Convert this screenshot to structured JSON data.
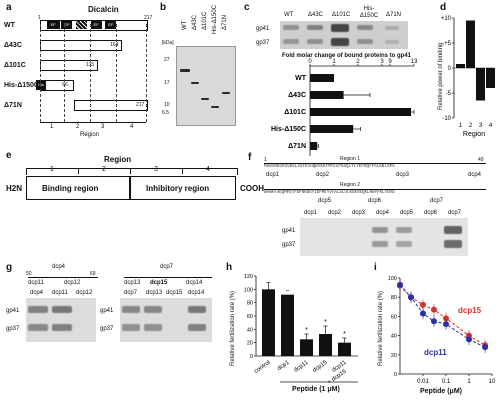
{
  "panels": {
    "a": {
      "label": "a",
      "title": "Dicalcin",
      "n_start": "1",
      "n_end": "217",
      "rows": [
        "WT",
        "Δ43C",
        "Δ101C",
        "His-Δ150C",
        "Δ71N"
      ],
      "row_ends": [
        "",
        "164",
        "115",
        "66",
        "217"
      ],
      "his_tag": "His",
      "region_label": "Region",
      "regions": [
        "1",
        "2",
        "3",
        "4"
      ],
      "ef_labels": [
        "EF",
        "EF",
        "EF",
        "EF",
        "EF"
      ]
    },
    "b": {
      "label": "b",
      "unit": "[kDa]",
      "markers": [
        "27",
        "17",
        "10",
        "6.5"
      ],
      "lanes": [
        "WT",
        "Δ43C",
        "Δ101C",
        "His-Δ150C",
        "Δ71N"
      ]
    },
    "c": {
      "label": "c",
      "blot_cols": [
        "WT",
        "Δ43C",
        "Δ101C",
        "His-Δ150C",
        "Δ71N"
      ],
      "blot_rows": [
        "gp41",
        "gp37"
      ],
      "chart_title": "Fold molar change of bound proteins to gp41",
      "ticks": [
        "0",
        "1",
        "2",
        "3",
        "9",
        "13"
      ]
    },
    "d": {
      "label": "d",
      "ylabel": "Relative power of binding",
      "yticks": [
        "+10",
        "+5",
        "0",
        "-5",
        "-10"
      ],
      "xlabel": "Region",
      "xticks": [
        "1",
        "2",
        "3",
        "4"
      ]
    },
    "e": {
      "label": "e",
      "title": "Region",
      "regions": [
        "1",
        "2",
        "3",
        "4"
      ],
      "n_term": "H2N",
      "c_term": "COOH",
      "binding": "Binding region",
      "inhibitory": "Inhibitory region"
    },
    "f": {
      "label": "f",
      "region1": "Region 1",
      "region2": "Region 2",
      "start1": "1",
      "end1": "49",
      "seq1": "MGNVMEGKSVEELSSTECHQWYKKFMTECPSGQLTLYEFRQFFGLKNLSPS",
      "seq2": "WANKYAEQMFETFDFNKDGYIDFMEYVAALSLVLKGKVEQKLRWYFKLYDVD",
      "peptides_top": [
        "dcp1",
        "dcp2",
        "dcp3",
        "dcp4"
      ],
      "peptides_bottom": [
        "dcp5",
        "dcp6",
        "dcp7"
      ],
      "lanes": [
        "dcp1",
        "dcp2",
        "dcp3",
        "dcp4",
        "dcp5",
        "dcp6",
        "dcp7"
      ],
      "blot_rows": [
        "gp41",
        "gp37"
      ]
    },
    "g": {
      "label": "g",
      "left_top": "dcp4",
      "left_sub": [
        "dcp11",
        "dcp12"
      ],
      "left_lanes": [
        "dcp4",
        "dcp11",
        "dcp12"
      ],
      "right_top": "dcp7",
      "right_sub": [
        "dcp13",
        "dcp15",
        "dcp14"
      ],
      "right_lanes": [
        "dcp7",
        "dcp13",
        "dcp15",
        "dcp14"
      ],
      "blot_rows": [
        "gp41",
        "gp37"
      ],
      "num_left": "50",
      "num_right": "69"
    },
    "h": {
      "label": "h",
      "ylabel": "Relative fertilization rate (%)",
      "xlabel": "Peptide (1 μM)",
      "yticks": [
        "0",
        "20",
        "40",
        "60",
        "80",
        "100",
        "120"
      ],
      "marks": [
        "−",
        "*",
        "*",
        "*"
      ]
    },
    "i": {
      "label": "i",
      "ylabel": "Relative fertilization rate (%)",
      "xlabel": "Peptide (μM)",
      "yticks": [
        "0",
        "20",
        "40",
        "60",
        "80",
        "100"
      ],
      "xticks": [
        "0.01",
        "0.1",
        "1",
        "10"
      ],
      "series_labels": [
        "dcp15",
        "dcp11"
      ],
      "colors": {
        "dcp15": "#d9342b",
        "dcp11": "#2b2fa8"
      }
    }
  },
  "chart_data": [
    {
      "type": "bar",
      "title": "Fold molar change of bound proteins to gp41",
      "categories": [
        "WT",
        "Δ43C",
        "Δ101C",
        "His-Δ150C",
        "Δ71N"
      ],
      "values": [
        1.0,
        1.4,
        12.5,
        1.8,
        0.3
      ],
      "errors": [
        0.0,
        1.1,
        0.9,
        0.3,
        0.05
      ],
      "xlim": [
        0,
        13
      ],
      "orientation": "horizontal"
    },
    {
      "type": "bar",
      "categories": [
        "1",
        "2",
        "3",
        "4"
      ],
      "values": [
        0.8,
        9.5,
        -6.5,
        -4.0
      ],
      "ylim": [
        -10,
        10
      ],
      "ylabel": "Relative power of binding",
      "xlabel": "Region"
    },
    {
      "type": "bar",
      "categories": [
        "control",
        "dcp1",
        "dcp11",
        "dcp15",
        "dcp11 + dcp15"
      ],
      "values": [
        100,
        92,
        25,
        33,
        20
      ],
      "errors": [
        10,
        0,
        8,
        12,
        7
      ],
      "ylim": [
        0,
        120
      ],
      "ylabel": "Relative fertilization rate (%)",
      "xlabel": "Peptide (1 μM)"
    },
    {
      "type": "line",
      "xscale": "log",
      "xlim": [
        0.001,
        10
      ],
      "ylim": [
        0,
        100
      ],
      "ylabel": "Relative fertilization rate (%)",
      "xlabel": "Peptide (μM)",
      "series": [
        {
          "name": "dcp15",
          "x": [
            0.001,
            0.003,
            0.01,
            0.03,
            0.1,
            1,
            5
          ],
          "y": [
            92,
            80,
            72,
            67,
            58,
            40,
            30
          ]
        },
        {
          "name": "dcp11",
          "x": [
            0.001,
            0.003,
            0.01,
            0.03,
            0.1,
            1,
            5
          ],
          "y": [
            93,
            80,
            63,
            55,
            52,
            36,
            28
          ]
        }
      ]
    }
  ]
}
